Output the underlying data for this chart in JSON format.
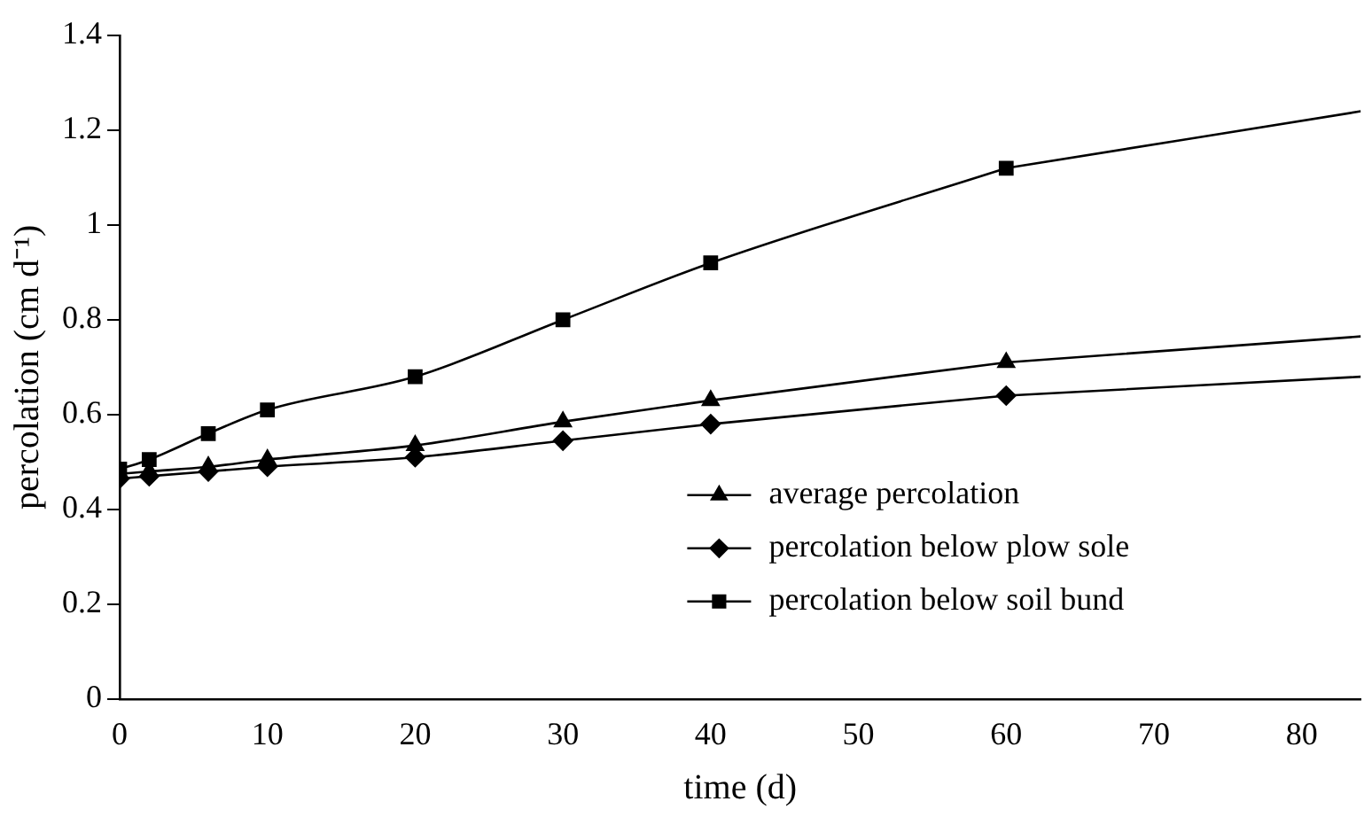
{
  "chart_data": {
    "type": "line",
    "xlabel": "time (d)",
    "ylabel": "percolation (cm d⁻¹)",
    "xlim": [
      0,
      84
    ],
    "xticks": [
      0,
      10,
      20,
      30,
      40,
      50,
      60,
      70,
      80
    ],
    "ylim": [
      0,
      1.4
    ],
    "yticks": [
      0,
      0.2,
      0.4,
      0.6,
      0.8,
      1,
      1.2,
      1.4
    ],
    "grid": false,
    "legend": "bottom right",
    "series": [
      {
        "name": "average percolation",
        "color": "#000000",
        "marker": "triangle",
        "x": [
          0,
          2,
          6,
          10,
          20,
          30,
          40,
          60
        ],
        "values": [
          0.475,
          0.48,
          0.49,
          0.505,
          0.535,
          0.585,
          0.63,
          0.71
        ]
      },
      {
        "name": "percolation below plow sole",
        "color": "#000000",
        "marker": "diamond",
        "x": [
          0,
          2,
          6,
          10,
          20,
          30,
          40,
          60
        ],
        "values": [
          0.465,
          0.47,
          0.48,
          0.49,
          0.51,
          0.545,
          0.58,
          0.64
        ]
      },
      {
        "name": "percolation below soil bund",
        "color": "#000000",
        "marker": "square",
        "x": [
          0,
          2,
          6,
          10,
          20,
          30,
          40,
          60
        ],
        "values": [
          0.485,
          0.505,
          0.56,
          0.61,
          0.68,
          0.8,
          0.92,
          1.12
        ]
      },
      {
        "color": "#000000",
        "marker": "none",
        "x": [
          60,
          84
        ],
        "values": [
          0.71,
          0.765
        ]
      },
      {
        "color": "#000000",
        "marker": "none",
        "x": [
          60,
          84
        ],
        "values": [
          0.64,
          0.68
        ]
      },
      {
        "color": "#000000",
        "marker": "none",
        "x": [
          60,
          84
        ],
        "values": [
          1.12,
          1.24
        ]
      }
    ]
  }
}
